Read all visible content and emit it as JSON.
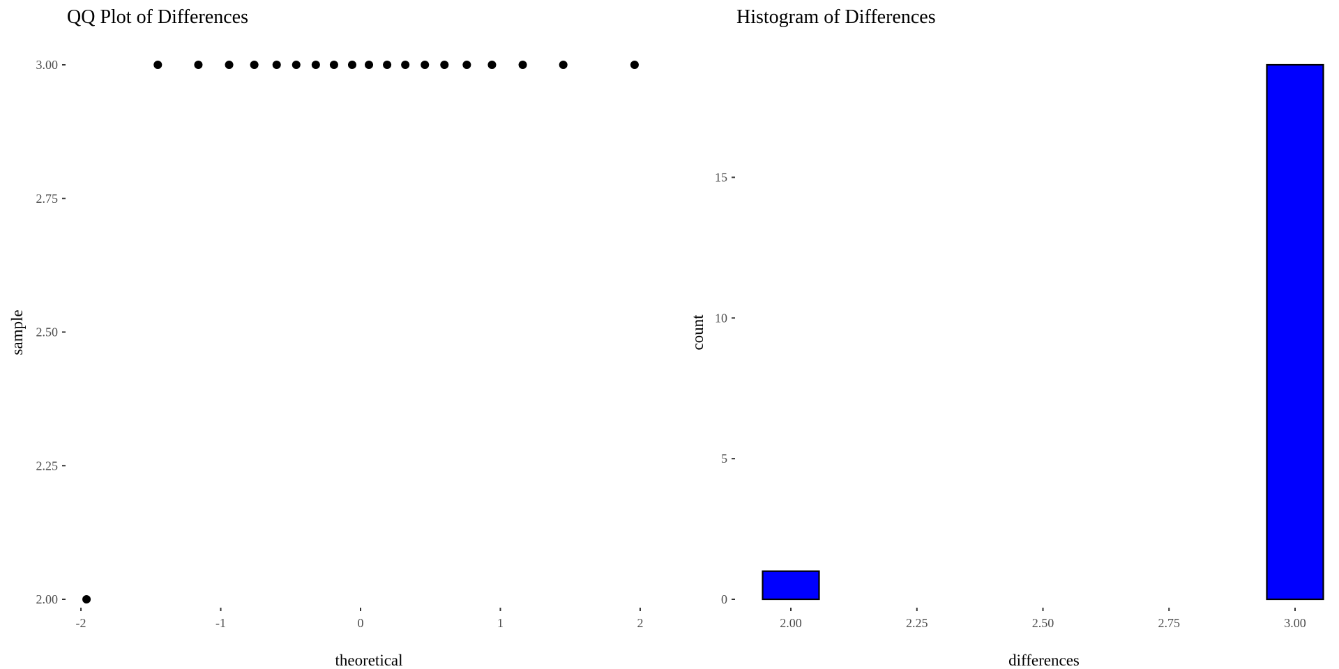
{
  "chart_data": [
    {
      "type": "scatter",
      "title": "QQ Plot of Differences",
      "xlabel": "theoretical",
      "ylabel": "sample",
      "xlim": [
        -2.1,
        2.1
      ],
      "ylim": [
        1.95,
        3.05
      ],
      "x_ticks": [
        -2,
        -1,
        0,
        1,
        2
      ],
      "x_tick_labels": [
        "-2",
        "-1",
        "0",
        "1",
        "2"
      ],
      "y_ticks": [
        2.0,
        2.25,
        2.5,
        2.75,
        3.0
      ],
      "y_tick_labels": [
        "2.00",
        "2.25",
        "2.50",
        "2.75",
        "3.00"
      ],
      "grid": false,
      "points": [
        {
          "x": -1.96,
          "y": 2.0
        },
        {
          "x": -1.45,
          "y": 3.0
        },
        {
          "x": -1.16,
          "y": 3.0
        },
        {
          "x": -0.94,
          "y": 3.0
        },
        {
          "x": -0.76,
          "y": 3.0
        },
        {
          "x": -0.6,
          "y": 3.0
        },
        {
          "x": -0.46,
          "y": 3.0
        },
        {
          "x": -0.32,
          "y": 3.0
        },
        {
          "x": -0.19,
          "y": 3.0
        },
        {
          "x": -0.06,
          "y": 3.0
        },
        {
          "x": 0.06,
          "y": 3.0
        },
        {
          "x": 0.19,
          "y": 3.0
        },
        {
          "x": 0.32,
          "y": 3.0
        },
        {
          "x": 0.46,
          "y": 3.0
        },
        {
          "x": 0.6,
          "y": 3.0
        },
        {
          "x": 0.76,
          "y": 3.0
        },
        {
          "x": 0.94,
          "y": 3.0
        },
        {
          "x": 1.16,
          "y": 3.0
        },
        {
          "x": 1.45,
          "y": 3.0
        },
        {
          "x": 1.96,
          "y": 3.0
        }
      ],
      "color": "#000000"
    },
    {
      "type": "bar",
      "title": "Histogram of Differences",
      "xlabel": "differences",
      "ylabel": "count",
      "xlim": [
        1.95,
        3.05
      ],
      "ylim": [
        0,
        19
      ],
      "x_ticks": [
        2.0,
        2.25,
        2.5,
        2.75,
        3.0
      ],
      "x_tick_labels": [
        "2.00",
        "2.25",
        "2.50",
        "2.75",
        "3.00"
      ],
      "y_ticks": [
        0,
        5,
        10,
        15
      ],
      "y_tick_labels": [
        "0",
        "5",
        "10",
        "15"
      ],
      "grid": false,
      "bins": [
        {
          "x0": 1.944,
          "x1": 2.056,
          "count": 1
        },
        {
          "x0": 2.056,
          "x1": 2.167,
          "count": 0
        },
        {
          "x0": 2.167,
          "x1": 2.278,
          "count": 0
        },
        {
          "x0": 2.278,
          "x1": 2.389,
          "count": 0
        },
        {
          "x0": 2.389,
          "x1": 2.5,
          "count": 0
        },
        {
          "x0": 2.5,
          "x1": 2.611,
          "count": 0
        },
        {
          "x0": 2.611,
          "x1": 2.722,
          "count": 0
        },
        {
          "x0": 2.722,
          "x1": 2.833,
          "count": 0
        },
        {
          "x0": 2.833,
          "x1": 2.944,
          "count": 0
        },
        {
          "x0": 2.944,
          "x1": 3.056,
          "count": 19
        }
      ],
      "fill": "#0000ff",
      "outline": "#000000"
    }
  ]
}
